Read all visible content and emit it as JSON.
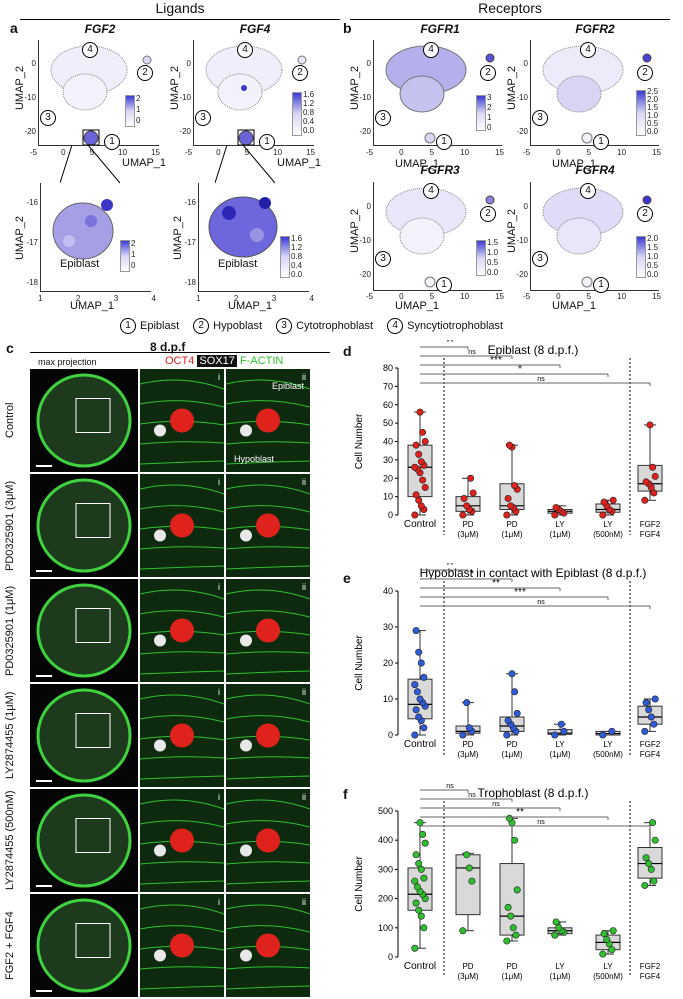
{
  "panels": {
    "a": "a",
    "b": "b",
    "c": "c",
    "d": "d",
    "e": "e",
    "f": "f"
  },
  "header": {
    "ligands": "Ligands",
    "receptors": "Receptors"
  },
  "genes": {
    "fgf2": "FGF2",
    "fgf4": "FGF4",
    "fgfr1": "FGFR1",
    "fgfr2": "FGFR2",
    "fgfr3": "FGFR3",
    "fgfr4": "FGFR4"
  },
  "umap": {
    "x_label": "UMAP_1",
    "y_label": "UMAP_2",
    "x_ticks": [
      "-5",
      "0",
      "5",
      "10",
      "15"
    ],
    "y_ticks_top": [
      "0",
      "-10",
      "-20"
    ],
    "y_ticks_zoom": [
      "-16",
      "-17",
      "-18"
    ],
    "x_ticks_zoom": [
      "1",
      "2",
      "3",
      "4"
    ],
    "epiblast": "Epiblast",
    "clusters": [
      "1",
      "2",
      "3",
      "4"
    ],
    "legend_fgf2": [
      "2",
      "1",
      "0"
    ],
    "legend_fgf4": [
      "1.6",
      "1.2",
      "0.8",
      "0.4",
      "0.0"
    ],
    "legend_fgfr1": [
      "3",
      "2",
      "1",
      "0"
    ],
    "legend_fgfr2": [
      "2.5",
      "2.0",
      "1.5",
      "1.0",
      "0.5",
      "0.0"
    ],
    "legend_fgfr3": [
      "1.5",
      "1.0",
      "0.5",
      "0.0"
    ],
    "legend_fgfr4": [
      "2.0",
      "1.5",
      "1.0",
      "0.5",
      "0.0"
    ]
  },
  "cluster_legend": [
    {
      "num": "1",
      "name": "Epiblast"
    },
    {
      "num": "2",
      "name": "Hypoblast"
    },
    {
      "num": "3",
      "name": "Cytotrophoblast"
    },
    {
      "num": "4",
      "name": "Syncytiotrophoblast"
    }
  ],
  "micro": {
    "title": "8 d.p.f",
    "max_projection": "max projection",
    "oct4": "OCT4",
    "sox17": "SOX17",
    "factin": "F-ACTIN",
    "epiblast_label": "Epiblast",
    "hypoblast_label": "Hypoblast",
    "rows": [
      "Control",
      "PD0325901\n(3μM)",
      "PD0325901\n(1μM)",
      "LY2874455\n(1μM)",
      "LY2874455\n(500nM)",
      "FGF2 + FGF4"
    ],
    "row_labels": [
      "Control",
      "PD0325901 (3μM)",
      "PD0325901 (1μM)",
      "LY2874455 (1μM)",
      "LY2874455 (500nM)",
      "FGF2 + FGF4"
    ],
    "i": "i",
    "ii": "ii"
  },
  "colors": {
    "red": "#e0221d",
    "green": "#2fbf2f",
    "blue": "#2f5bd8",
    "box_fill": "#d9d9d9"
  },
  "chart_data": [
    {
      "type": "box",
      "panel": "d",
      "title": "Epiblast (8 d.p.f.)",
      "ylabel": "Cell Number",
      "ylim": [
        0,
        80
      ],
      "yticks": [
        0,
        10,
        20,
        30,
        40,
        50,
        60,
        70,
        80
      ],
      "categories": [
        "Control",
        "PD (3μM)",
        "PD (1μM)",
        "LY (1μM)",
        "LY (500nM)",
        "FGF2 FGF4"
      ],
      "cat_lines": [
        [
          "Control"
        ],
        [
          "PD",
          "(3μM)"
        ],
        [
          "PD",
          "(1μM)"
        ],
        [
          "LY",
          "(1μM)"
        ],
        [
          "LY",
          "(500nM)"
        ],
        [
          "FGF2",
          "FGF4"
        ]
      ],
      "boxes": [
        {
          "min": 0,
          "q1": 10,
          "median": 26,
          "q3": 38,
          "max": 56
        },
        {
          "min": 0,
          "q1": 2,
          "median": 5,
          "q3": 10,
          "max": 20
        },
        {
          "min": 0,
          "q1": 3,
          "median": 5,
          "q3": 17,
          "max": 38
        },
        {
          "min": 0,
          "q1": 1,
          "median": 2,
          "q3": 3,
          "max": 5
        },
        {
          "min": 0,
          "q1": 1.5,
          "median": 3,
          "q3": 6,
          "max": 8
        },
        {
          "min": 8,
          "q1": 13,
          "median": 17,
          "q3": 27,
          "max": 49
        }
      ],
      "points": [
        [
          0,
          3,
          5,
          8,
          11,
          15,
          19,
          23,
          25,
          26,
          27,
          29,
          33,
          38,
          40,
          45,
          56
        ],
        [
          0,
          2,
          3,
          5,
          9,
          12,
          20
        ],
        [
          0,
          2,
          4,
          5,
          9,
          14,
          16,
          37,
          38
        ],
        [
          0,
          1,
          2,
          3,
          4
        ],
        [
          0,
          2,
          3,
          5,
          7,
          8
        ],
        [
          8,
          12,
          15,
          17,
          18,
          21,
          26,
          49
        ]
      ],
      "significance": [
        {
          "to": 1,
          "label": "**"
        },
        {
          "to": 2,
          "label": "ns"
        },
        {
          "to": 3,
          "label": "***"
        },
        {
          "to": 4,
          "label": "*"
        },
        {
          "to": 5,
          "label": "ns"
        }
      ],
      "color": "#e0221d"
    },
    {
      "type": "box",
      "panel": "e",
      "title": "Hypoblast in contact with Epiblast (8 d.p.f.)",
      "ylabel": "Cell Number",
      "ylim": [
        0,
        40
      ],
      "yticks": [
        0,
        10,
        20,
        30,
        40
      ],
      "categories": [
        "Control",
        "PD (3μM)",
        "PD (1μM)",
        "LY (1μM)",
        "LY (500nM)",
        "FGF2 FGF4"
      ],
      "cat_lines": [
        [
          "Control"
        ],
        [
          "PD",
          "(3μM)"
        ],
        [
          "PD",
          "(1μM)"
        ],
        [
          "LY",
          "(1μM)"
        ],
        [
          "LY",
          "(500nM)"
        ],
        [
          "FGF2",
          "FGF4"
        ]
      ],
      "boxes": [
        {
          "min": 0,
          "q1": 4.5,
          "median": 8.5,
          "q3": 15.5,
          "max": 29
        },
        {
          "min": 0,
          "q1": 0.5,
          "median": 1,
          "q3": 2.5,
          "max": 9
        },
        {
          "min": 0,
          "q1": 1,
          "median": 2.5,
          "q3": 5,
          "max": 17
        },
        {
          "min": 0,
          "q1": 0.2,
          "median": 0.5,
          "q3": 1.5,
          "max": 3
        },
        {
          "min": 0,
          "q1": 0,
          "median": 0.4,
          "q3": 1,
          "max": 1
        },
        {
          "min": 1,
          "q1": 3,
          "median": 5,
          "q3": 8,
          "max": 10
        }
      ],
      "points": [
        [
          0,
          2,
          4,
          5,
          7,
          8,
          9,
          10,
          12,
          14,
          16,
          20,
          23,
          29
        ],
        [
          0,
          1,
          2,
          9
        ],
        [
          0,
          1,
          2,
          3,
          4,
          6,
          12,
          17
        ],
        [
          0,
          1,
          3
        ],
        [
          0,
          1
        ],
        [
          1,
          3,
          5,
          7,
          9,
          10
        ]
      ],
      "significance": [
        {
          "to": 1,
          "label": "**"
        },
        {
          "to": 2,
          "label": "*"
        },
        {
          "to": 3,
          "label": "**"
        },
        {
          "to": 4,
          "label": "***"
        },
        {
          "to": 5,
          "label": "ns"
        }
      ],
      "color": "#2f5bd8"
    },
    {
      "type": "box",
      "panel": "f",
      "title": "Trophoblast (8 d.p.f.)",
      "ylabel": "Cell Number",
      "ylim": [
        0,
        500
      ],
      "yticks": [
        0,
        100,
        200,
        300,
        400,
        500
      ],
      "categories": [
        "Control",
        "PD (3μM)",
        "PD (1μM)",
        "LY (1μM)",
        "LY (500nM)",
        "FGF2 FGF4"
      ],
      "cat_lines": [
        [
          "Control"
        ],
        [
          "PD",
          "(3μM)"
        ],
        [
          "PD",
          "(1μM)"
        ],
        [
          "LY",
          "(1μM)"
        ],
        [
          "LY",
          "(500nM)"
        ],
        [
          "FGF2",
          "FGF4"
        ]
      ],
      "boxes": [
        {
          "min": 30,
          "q1": 160,
          "median": 215,
          "q3": 305,
          "max": 460
        },
        {
          "min": 90,
          "q1": 145,
          "median": 305,
          "q3": 350,
          "max": 355
        },
        {
          "min": 55,
          "q1": 75,
          "median": 140,
          "q3": 320,
          "max": 475
        },
        {
          "min": 75,
          "q1": 80,
          "median": 90,
          "q3": 100,
          "max": 120
        },
        {
          "min": 10,
          "q1": 25,
          "median": 50,
          "q3": 75,
          "max": 90
        },
        {
          "min": 245,
          "q1": 270,
          "median": 320,
          "q3": 375,
          "max": 460
        }
      ],
      "points": [
        [
          30,
          100,
          140,
          160,
          185,
          200,
          215,
          225,
          240,
          260,
          270,
          300,
          320,
          350,
          390,
          420,
          460
        ],
        [
          90,
          260,
          305,
          350
        ],
        [
          55,
          75,
          100,
          140,
          170,
          230,
          400,
          460,
          475
        ],
        [
          75,
          85,
          90,
          100,
          120
        ],
        [
          10,
          25,
          45,
          60,
          80,
          90
        ],
        [
          245,
          260,
          300,
          320,
          340,
          400,
          460
        ]
      ],
      "significance": [
        {
          "to": 1,
          "label": "ns"
        },
        {
          "to": 2,
          "label": "ns"
        },
        {
          "to": 3,
          "label": "ns"
        },
        {
          "to": 4,
          "label": "**"
        },
        {
          "to": 5,
          "label": "ns"
        }
      ],
      "color": "#2fbf2f"
    }
  ]
}
